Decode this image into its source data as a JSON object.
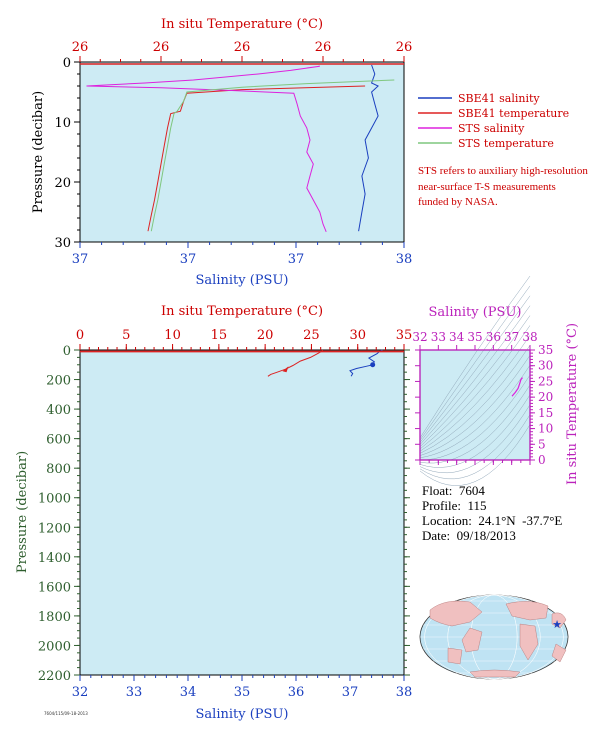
{
  "chart_data": [
    {
      "type": "line",
      "name_note": "",
      "top_axis": {
        "label": "In situ Temperature (°C)",
        "ticks": [
          "26",
          "26",
          "26",
          "26",
          "26"
        ]
      },
      "bottom_axis": {
        "label": "Salinity (PSU)",
        "ticks": [
          "37",
          "37",
          "37",
          "38"
        ]
      },
      "left_axis": {
        "label": "Pressure (decibar)",
        "ticks": [
          "0",
          "10",
          "20",
          "30"
        ],
        "ylim": [
          0,
          30
        ]
      },
      "series": [
        {
          "name": "SBE41 salinity",
          "color": "#1a3fbf",
          "points": [
            [
              0.9,
              0.5
            ],
            [
              0.91,
              2
            ],
            [
              0.9,
              3.5
            ],
            [
              0.92,
              4
            ],
            [
              0.9,
              5
            ],
            [
              0.91,
              7
            ],
            [
              0.92,
              9
            ],
            [
              0.9,
              11
            ],
            [
              0.88,
              13
            ],
            [
              0.89,
              16
            ],
            [
              0.87,
              19
            ],
            [
              0.88,
              22
            ],
            [
              0.87,
              25
            ],
            [
              0.86,
              28.2
            ]
          ]
        },
        {
          "name": "SBE41 temperature",
          "color": "#dd2222",
          "points": [
            [
              0.88,
              4
            ],
            [
              0.5,
              4.6
            ],
            [
              0.33,
              5.2
            ],
            [
              0.32,
              6.5
            ],
            [
              0.31,
              8.2
            ],
            [
              0.28,
              8.6
            ],
            [
              0.27,
              11
            ],
            [
              0.26,
              14
            ],
            [
              0.25,
              17
            ],
            [
              0.24,
              20
            ],
            [
              0.23,
              23
            ],
            [
              0.22,
              25.5
            ],
            [
              0.21,
              28.2
            ]
          ]
        },
        {
          "name": "STS salinity",
          "color": "#dd22dd",
          "points": [
            [
              0.7,
              1
            ],
            [
              0.74,
              0.7
            ],
            [
              0.65,
              1.4
            ],
            [
              0.55,
              2
            ],
            [
              0.35,
              3
            ],
            [
              0.2,
              3.5
            ],
            [
              0.02,
              4
            ],
            [
              0.25,
              4.3
            ],
            [
              0.45,
              4.7
            ],
            [
              0.66,
              5.2
            ],
            [
              0.67,
              7
            ],
            [
              0.68,
              9
            ],
            [
              0.7,
              11
            ],
            [
              0.71,
              13
            ],
            [
              0.7,
              15
            ],
            [
              0.72,
              17
            ],
            [
              0.71,
              19
            ],
            [
              0.7,
              21
            ],
            [
              0.72,
              23
            ],
            [
              0.74,
              25
            ],
            [
              0.75,
              27
            ],
            [
              0.76,
              28.3
            ]
          ]
        },
        {
          "name": "STS temperature",
          "color": "#7fc77f",
          "points": [
            [
              0.97,
              3
            ],
            [
              0.7,
              3.6
            ],
            [
              0.5,
              4.2
            ],
            [
              0.33,
              5
            ],
            [
              0.32,
              6.5
            ],
            [
              0.3,
              8.2
            ],
            [
              0.29,
              8.6
            ],
            [
              0.28,
              11
            ],
            [
              0.27,
              14
            ],
            [
              0.26,
              17
            ],
            [
              0.25,
              20
            ],
            [
              0.24,
              23
            ],
            [
              0.23,
              25.5
            ],
            [
              0.22,
              28.2
            ]
          ]
        }
      ],
      "note": "STS refers to auxiliary high-resolution near-surface T-S measurements funded by NASA."
    },
    {
      "type": "line",
      "top_axis": {
        "label": "In situ Temperature (°C)",
        "ticks": [
          "0",
          "5",
          "10",
          "15",
          "20",
          "25",
          "30",
          "35"
        ],
        "xlim": [
          0,
          35
        ]
      },
      "bottom_axis": {
        "label": "Salinity (PSU)",
        "ticks": [
          "32",
          "33",
          "34",
          "35",
          "36",
          "37",
          "38"
        ],
        "xlim": [
          32,
          38
        ]
      },
      "left_axis": {
        "label": "Pressure (decibar)",
        "ticks": [
          "0",
          "200",
          "400",
          "600",
          "800",
          "1000",
          "1200",
          "1400",
          "1600",
          "1800",
          "2000",
          "2200"
        ],
        "ylim": [
          0,
          2200
        ]
      },
      "temperature": {
        "color": "#dd2222",
        "points": [
          [
            26.2,
            0
          ],
          [
            26.1,
            8
          ],
          [
            25.8,
            20
          ],
          [
            24.9,
            50
          ],
          [
            23.8,
            75
          ],
          [
            23.0,
            105
          ],
          [
            22.2,
            130
          ],
          [
            21.3,
            150
          ],
          [
            20.6,
            165
          ],
          [
            20.3,
            178
          ]
        ]
      },
      "salinity": {
        "color": "#1a3fbf",
        "points": [
          [
            37.6,
            0
          ],
          [
            37.55,
            8
          ],
          [
            37.5,
            25
          ],
          [
            37.35,
            55
          ],
          [
            37.45,
            80
          ],
          [
            37.42,
            100
          ],
          [
            37.3,
            110
          ],
          [
            37.12,
            125
          ],
          [
            37.0,
            140
          ],
          [
            37.05,
            160
          ],
          [
            37.02,
            178
          ]
        ]
      }
    },
    {
      "type": "scatter",
      "top_axis": {
        "label": "Salinity (PSU)",
        "ticks": [
          "32",
          "33",
          "34",
          "35",
          "36",
          "37",
          "38"
        ],
        "xlim": [
          32,
          38
        ]
      },
      "right_axis": {
        "label": "In situ Temperature (°C)",
        "ticks": [
          "0",
          "5",
          "10",
          "15",
          "20",
          "25",
          "30",
          "35"
        ],
        "ylim": [
          0,
          35
        ]
      },
      "points": [
        [
          37.02,
          20.3
        ],
        [
          37.2,
          21.5
        ],
        [
          37.35,
          22.8
        ],
        [
          37.45,
          24.5
        ],
        [
          37.5,
          25.5
        ],
        [
          37.55,
          26.0
        ],
        [
          37.6,
          26.2
        ]
      ]
    }
  ],
  "float_info": {
    "float": "Float:  7604",
    "profile": "Profile:  115",
    "location": "Location:  24.1°N  -37.7°E",
    "date": "Date:  09/18/2013"
  },
  "map": {
    "marker": "★",
    "marker_color": "#1a3fbf"
  },
  "footer": "7604/115/09-18-2013"
}
